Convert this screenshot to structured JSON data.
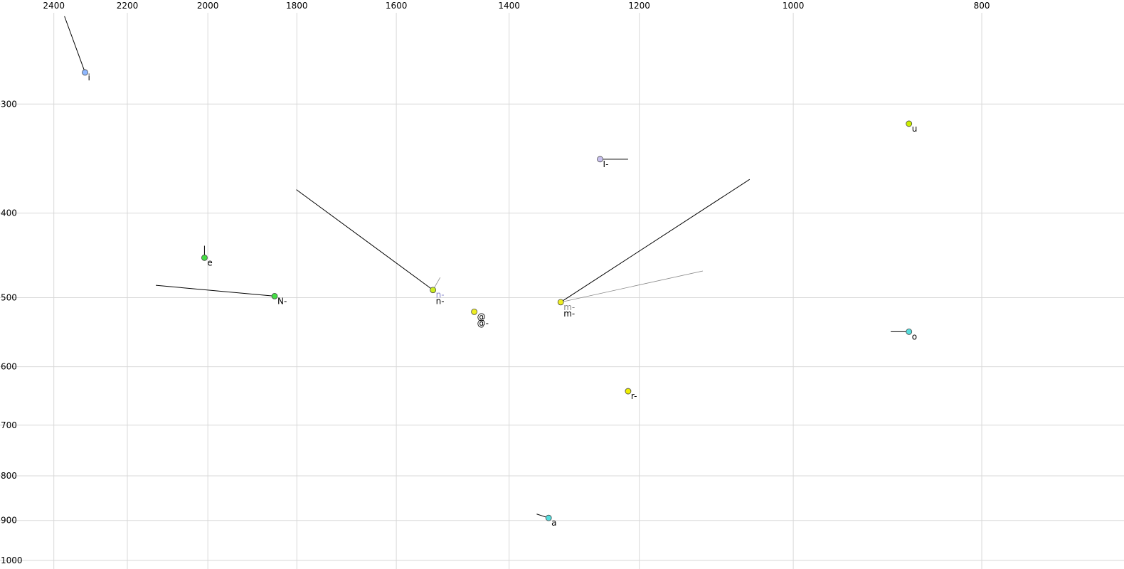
{
  "chart_data": {
    "type": "scatter",
    "xscale": "log",
    "yscale": "log",
    "xlim": [
      2558,
      676
    ],
    "ylim": [
      228,
      1023
    ],
    "xticks": [
      2400,
      2200,
      2000,
      1800,
      1600,
      1400,
      1200,
      1000,
      800
    ],
    "yticks": [
      300,
      400,
      500,
      600,
      700,
      800,
      900,
      1000
    ],
    "grid": true,
    "points": [
      {
        "labels": [
          "i"
        ],
        "label_colors": [
          "#000000"
        ],
        "x": 2313,
        "y": 276,
        "color": "#8fb8ff",
        "line": {
          "x": 2370,
          "y": 238
        }
      },
      {
        "labels": [
          "e"
        ],
        "label_colors": [
          "#000000"
        ],
        "x": 2008,
        "y": 450,
        "color": "#44dd44",
        "line": {
          "x": 2008,
          "y": 436
        }
      },
      {
        "labels": [
          "N-"
        ],
        "label_colors": [
          "#000000"
        ],
        "x": 1848,
        "y": 498,
        "color": "#44dd44",
        "line": {
          "x": 2127,
          "y": 484
        }
      },
      {
        "labels": [
          "n-",
          "n-"
        ],
        "label_colors": [
          "#8888cc",
          "#000000"
        ],
        "x": 1532,
        "y": 490,
        "color": "#ccee22",
        "line": {
          "x": 1801,
          "y": 376
        },
        "line2": {
          "x": 1519,
          "y": 474
        }
      },
      {
        "labels": [
          "@",
          "@-"
        ],
        "label_colors": [
          "#000000",
          "#000000"
        ],
        "x": 1459,
        "y": 519,
        "color": "#eeee22"
      },
      {
        "labels": [
          "m-",
          "m-"
        ],
        "label_colors": [
          "#888888",
          "#000000"
        ],
        "x": 1317,
        "y": 506,
        "color": "#eeee22",
        "line": {
          "x": 1053,
          "y": 366
        },
        "line2": {
          "x": 1113,
          "y": 466
        }
      },
      {
        "labels": [
          "I-"
        ],
        "label_colors": [
          "#000000"
        ],
        "x": 1257,
        "y": 347,
        "color": "#c8c0ee",
        "line": {
          "x": 1216,
          "y": 347
        }
      },
      {
        "labels": [
          "u"
        ],
        "label_colors": [
          "#000000"
        ],
        "x": 872,
        "y": 316,
        "color": "#ccee00"
      },
      {
        "labels": [
          "o"
        ],
        "label_colors": [
          "#000000"
        ],
        "x": 872,
        "y": 547,
        "color": "#55dddd",
        "line": {
          "x": 891,
          "y": 547
        }
      },
      {
        "labels": [
          "r-"
        ],
        "label_colors": [
          "#000000"
        ],
        "x": 1216,
        "y": 640,
        "color": "#eeee00",
        "line": {
          "x": 1216,
          "y": 635
        }
      },
      {
        "labels": [
          "a"
        ],
        "label_colors": [
          "#000000"
        ],
        "x": 1336,
        "y": 894,
        "color": "#55dddd",
        "line": {
          "x": 1355,
          "y": 885
        }
      }
    ]
  }
}
